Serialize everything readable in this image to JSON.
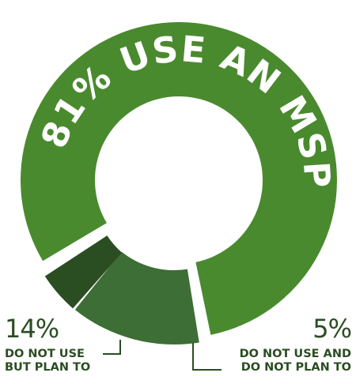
{
  "chart_data": {
    "type": "pie",
    "variant": "donut",
    "title": "",
    "slices": [
      {
        "value": 81,
        "label": "81% USE AN MSP",
        "color": "#4a8a2e"
      },
      {
        "value": 14,
        "percent_label": "14%",
        "label_line1": "DO NOT USE",
        "label_line2": "BUT PLAN TO",
        "color": "#3d6e35"
      },
      {
        "value": 5,
        "percent_label": "5%",
        "label_line1": "DO NOT USE AND",
        "label_line2": "DO NOT PLAN TO",
        "color": "#2a4d22"
      }
    ]
  },
  "colors": {
    "primary": "#4a8a2e",
    "secondary": "#3d6e35",
    "tertiary": "#2a4d22",
    "text_dark": "#2a4d22",
    "text_light": "#ffffff",
    "background": "#ffffff"
  }
}
